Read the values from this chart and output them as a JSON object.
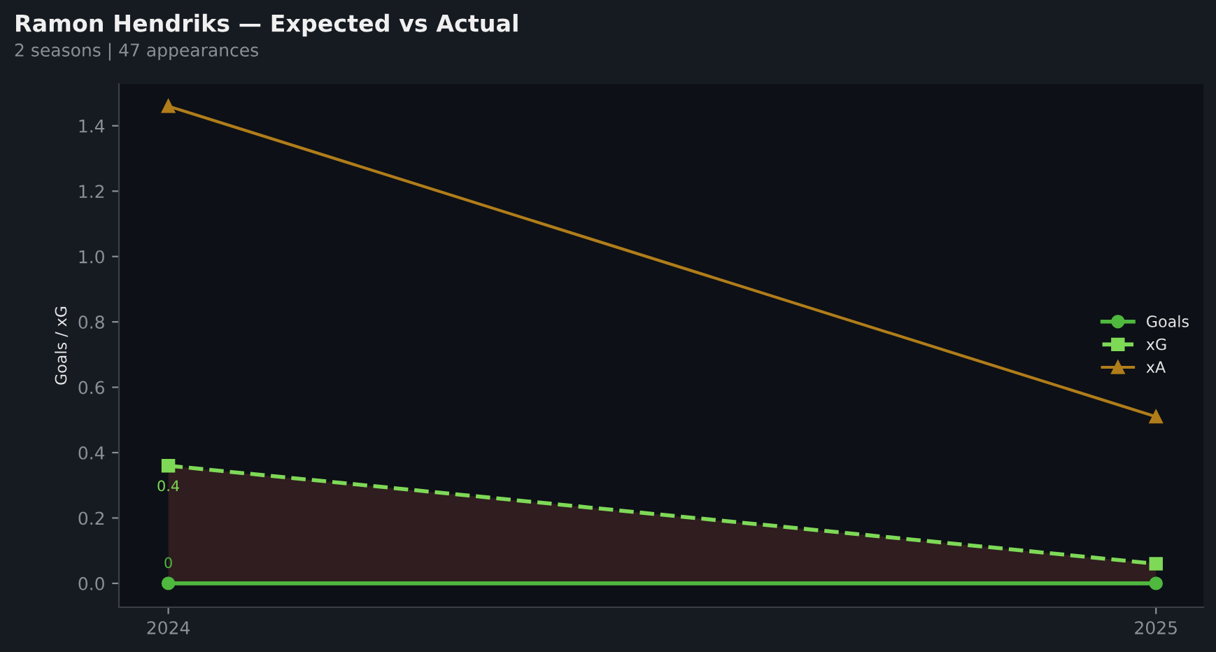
{
  "chart_data": {
    "type": "line",
    "title": "Ramon Hendriks — Expected vs Actual",
    "subtitle": "2 seasons | 47 appearances",
    "ylabel": "Goals / xG",
    "x": [
      2024,
      2025
    ],
    "xlim": [
      2023.95,
      2025.048
    ],
    "xticks": [
      2024,
      2025
    ],
    "ylim": [
      -0.073,
      1.528
    ],
    "yticks": [
      {
        "value": 0,
        "label": "0.0"
      },
      {
        "value": 0.2,
        "label": "0.2"
      },
      {
        "value": 0.4,
        "label": "0.4"
      },
      {
        "value": 0.6,
        "label": "0.6"
      },
      {
        "value": 0.8,
        "label": "0.8"
      },
      {
        "value": 1.0,
        "label": "1.0"
      },
      {
        "value": 1.2,
        "label": "1.2"
      },
      {
        "value": 1.4,
        "label": "1.4"
      }
    ],
    "series": [
      {
        "name": "Goals",
        "color": "#4fb83f",
        "values": [
          0,
          0
        ],
        "marker": "circle",
        "line_style": "solid",
        "value_labels": [
          "0",
          null
        ]
      },
      {
        "name": "xG",
        "color": "#7ed957",
        "values": [
          0.36,
          0.06
        ],
        "marker": "square",
        "line_style": "dashed",
        "value_labels": [
          "0.4",
          null
        ],
        "lower": [
          0,
          0
        ],
        "upper": [
          0.36,
          0.06
        ]
      },
      {
        "name": "xA",
        "color": "#b07d1a",
        "values": [
          1.46,
          0.51
        ],
        "marker": "triangle",
        "line_style": "solid"
      }
    ],
    "grid": false,
    "legend": "right"
  }
}
